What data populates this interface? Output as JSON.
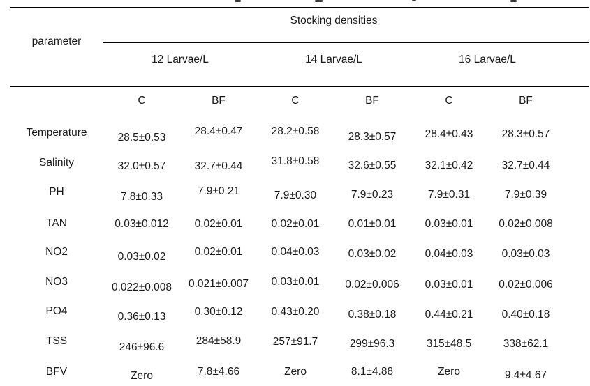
{
  "table": {
    "parameter_header": "parameter",
    "group_title": "Stocking densities",
    "groups": [
      "12 Larvae/L",
      "14 Larvae/L",
      "16 Larvae/L"
    ],
    "subheaders": [
      "C",
      "BF",
      "C",
      "BF",
      "C",
      "BF"
    ],
    "rows": [
      {
        "param": "Temperature",
        "values": [
          "28.5±0.53",
          "28.4±0.47",
          "28.2±0.58",
          "28.3±0.57",
          "28.4±0.43",
          "28.3±0.57"
        ]
      },
      {
        "param": "Salinity",
        "values": [
          "32.0±0.57",
          "32.7±0.44",
          "31.8±0.58",
          "32.6±0.55",
          "32.1±0.42",
          "32.7±0.44"
        ]
      },
      {
        "param": "PH",
        "values": [
          "7.8±0.33",
          "7.9±0.21",
          "7.9±0.30",
          "7.9±0.23",
          "7.9±0.31",
          "7.9±0.39"
        ]
      },
      {
        "param": "TAN",
        "values": [
          "0.03±0.012",
          "0.02±0.01",
          "0.02±0.01",
          "0.01±0.01",
          "0.03±0.01",
          "0.02±0.008"
        ]
      },
      {
        "param": "NO2",
        "values": [
          "0.03±0.02",
          "0.02±0.01",
          "0.04±0.03",
          "0.03±0.02",
          "0.04±0.03",
          "0.03±0.03"
        ]
      },
      {
        "param": "NO3",
        "values": [
          "0.022±0.008",
          "0.021±0.007",
          "0.03±0.01",
          "0.02±0.006",
          "0.03±0.01",
          "0.02±0.006"
        ]
      },
      {
        "param": "PO4",
        "values": [
          "0.36±0.13",
          "0.30±0.12",
          "0.43±0.20",
          "0.38±0.18",
          "0.44±0.21",
          "0.40±0.18"
        ]
      },
      {
        "param": "TSS",
        "values": [
          "246±96.6",
          "284±58.9",
          "257±91.7",
          "299±96.3",
          "315±48.5",
          "338±62.1"
        ]
      },
      {
        "param": "BFV",
        "values": [
          "Zero",
          "7.8±4.66",
          "Zero",
          "8.1±4.88",
          "Zero",
          "9.4±4.67"
        ]
      }
    ],
    "colors": {
      "text": "#1a1a1a",
      "rule_line": "#000000",
      "background": "#ffffff"
    }
  }
}
